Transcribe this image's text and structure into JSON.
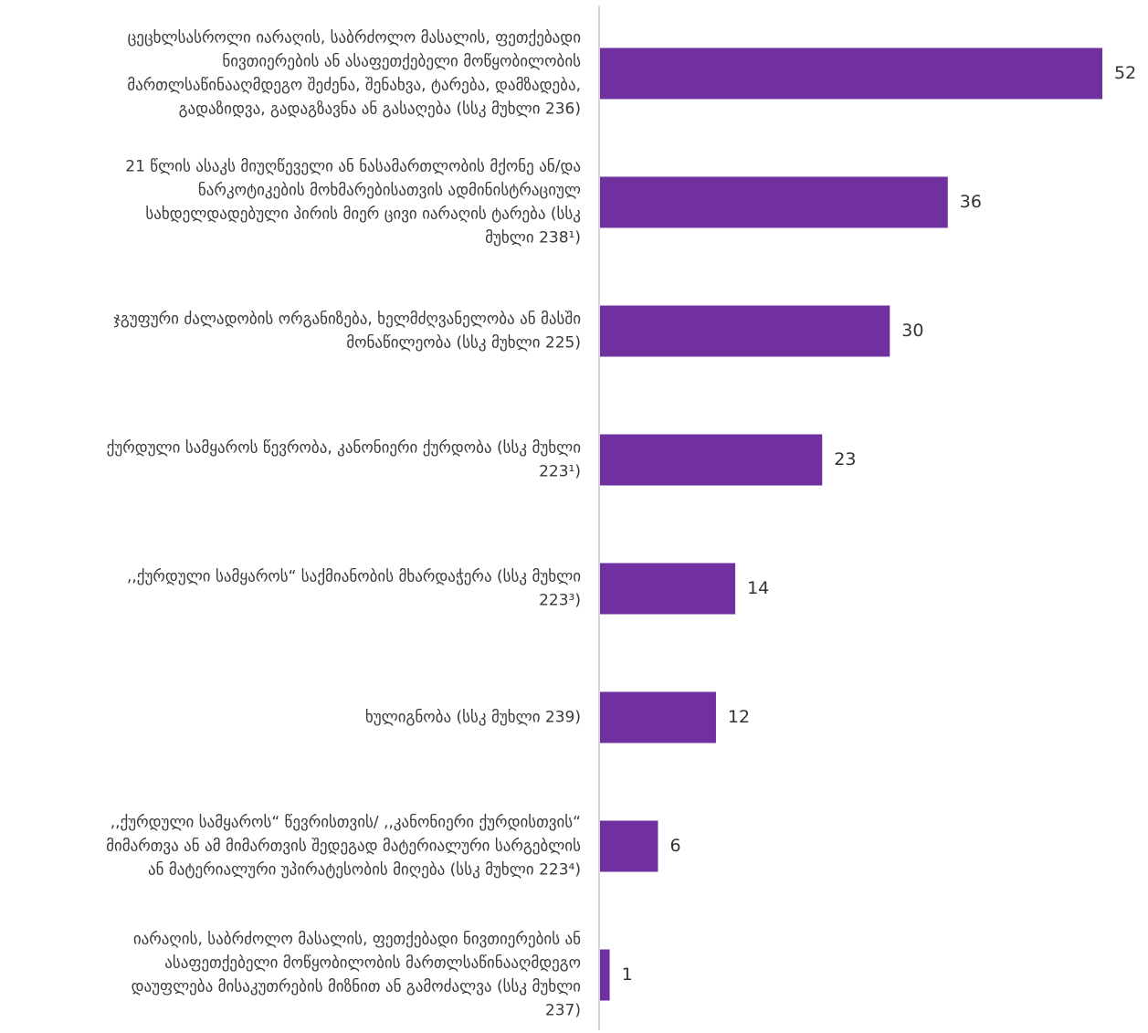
{
  "chart_data": {
    "type": "bar",
    "orientation": "horizontal",
    "categories": [
      "ცეცხლსასროლი იარაღის, საბრძოლო მასალის, ფეთქებადი ნივთიერების ან ასაფეთქებელი მოწყობილობის მართლსაწინააღმდეგო შეძენა, შენახვა, ტარება, დამზადება, გადაზიდვა, გადაგზავნა ან გასაღება (სსკ მუხლი 236)",
      "21 წლის ასაკს მიუღწეველი ან ნასამართლობის მქონე ან/და ნარკოტიკების მოხმარებისათვის ადმინისტრაციულ სახდელდადებული პირის მიერ ცივი იარაღის ტარება (სსკ მუხლი 238¹)",
      "ჯგუფური ძალადობის ორგანიზება, ხელმძღვანელობა ან მასში მონაწილეობა (სსკ   მუხლი 225)",
      "ქურდული სამყაროს წევრობა, კანონიერი ქურდობა (სსკ  მუხლი 223¹)",
      ",,ქურდული სამყაროს“ საქმიანობის მხარდაჭერა (სსკ მუხლი 223³)",
      "ხულიგნობა (სსკ მუხლი 239)",
      ",,ქურდული სამყაროს“ წევრისთვის/ ,,კანონიერი ქურდისთვის“ მიმართვა ან ამ მიმართვის შედეგად მატერიალური სარგებლის ან მატერიალური უპირატესობის მიღება  (სსკ მუხლი 223⁴)",
      "იარაღის, საბრძოლო მასალის, ფეთქებადი ნივთიერების ან ასაფეთქებელი მოწყობილობის მართლსაწინააღმდეგო დაუფლება მისაკუთრების მიზნით ან გამოძალვა (სსკ მუხლი 237)"
    ],
    "category_lines": [
      [
        "ცეცხლსასროლი იარაღის, საბრძოლო მასალის, ფეთქებადი",
        "ნივთიერების ან ასაფეთქებელი მოწყობილობის",
        "მართლსაწინააღმდეგო შეძენა, შენახვა, ტარება, დამზადება,",
        "გადაზიდვა, გადაგზავნა ან გასაღება (სსკ მუხლი 236)"
      ],
      [
        "21 წლის ასაკს მიუღწეველი ან ნასამართლობის მქონე ან/და",
        "ნარკოტიკების მოხმარებისათვის ადმინისტრაციულ",
        "სახდელდადებული პირის მიერ ცივი იარაღის ტარება (სსკ",
        "მუხლი 238¹)"
      ],
      [
        "ჯგუფური ძალადობის ორგანიზება, ხელმძღვანელობა ან მასში",
        "მონაწილეობა (სსკ   მუხლი 225)"
      ],
      [
        "ქურდული სამყაროს წევრობა, კანონიერი ქურდობა (სსკ  მუხლი",
        "223¹)"
      ],
      [
        ",,ქურდული სამყაროს“ საქმიანობის მხარდაჭერა (სსკ მუხლი",
        "223³)"
      ],
      [
        "ხულიგნობა (სსკ მუხლი 239)"
      ],
      [
        ",,ქურდული სამყაროს“ წევრისთვის/ ,,კანონიერი ქურდისთვის“",
        "მიმართვა ან ამ მიმართვის შედეგად მატერიალური სარგებლის",
        "ან მატერიალური უპირატესობის მიღება  (სსკ მუხლი 223⁴)"
      ],
      [
        "იარაღის, საბრძოლო მასალის, ფეთქებადი ნივთიერების ან",
        "ასაფეთქებელი მოწყობილობის მართლსაწინააღმდეგო",
        "დაუფლება მისაკუთრების მიზნით ან გამოძალვა (სსკ მუხლი",
        "237)"
      ]
    ],
    "values": [
      52,
      36,
      30,
      23,
      14,
      12,
      6,
      1
    ],
    "value_labels": [
      "52",
      "36",
      "30",
      "23",
      "14",
      "12",
      "6",
      "1"
    ],
    "xlim": [
      0,
      52
    ],
    "title": "",
    "xlabel": "",
    "ylabel": "",
    "grid": false,
    "legend": "none",
    "bar_color": "#7030a0",
    "axis_color": "#c8c8c8"
  }
}
